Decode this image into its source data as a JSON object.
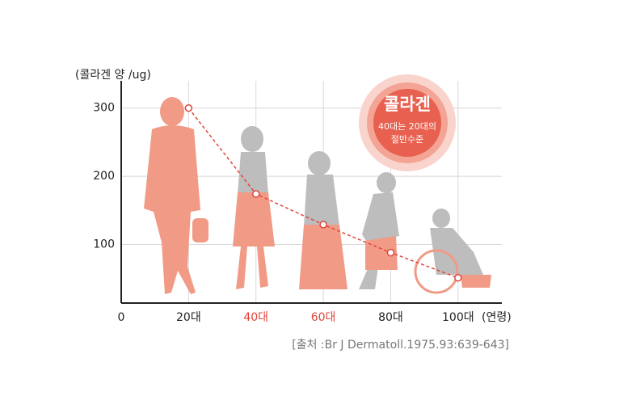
{
  "chart_data": {
    "type": "line",
    "y_label": "(콜라겐 양 /ug)",
    "x_label": "(연령)",
    "x": [
      20,
      40,
      60,
      80,
      100
    ],
    "series": [
      {
        "color": "#e0453a",
        "values": [
          300,
          174,
          129,
          88,
          51
        ]
      }
    ],
    "xlim": [
      0,
      113
    ],
    "ylim": [
      14,
      340
    ],
    "xticks": [
      0,
      {
        "value": 20,
        "label": "20대"
      },
      {
        "value": 40,
        "label": "40대"
      },
      {
        "value": 60,
        "label": "60대"
      },
      {
        "value": 80,
        "label": "80대"
      },
      {
        "value": 100,
        "label": "100대"
      }
    ],
    "xtick_colors": [
      "#222222",
      "#222222",
      "#e0453a",
      "#e0453a",
      "#222222",
      "#222222"
    ],
    "yticks": [
      100,
      200,
      300
    ],
    "grid": true,
    "annotation": {
      "title": "콜라겐",
      "lines": [
        "40대는 20대의",
        "절반수준"
      ]
    },
    "source": "[출처 :Br J Dermatoll.1975.93:639-643]"
  }
}
